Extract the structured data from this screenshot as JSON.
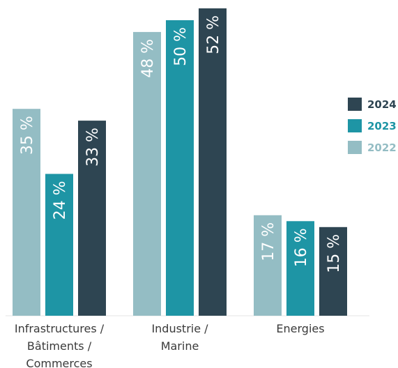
{
  "chart_data": {
    "type": "bar",
    "categories": [
      [
        "Infrastructures /",
        "Bâtiments /",
        "Commerces"
      ],
      [
        "Industrie /",
        "Marine"
      ],
      [
        "Energies"
      ]
    ],
    "series": [
      {
        "name": "2022",
        "color": "#94bdc4",
        "values": [
          35,
          48,
          17
        ],
        "labels": [
          "35 %",
          "48 %",
          "17 %"
        ]
      },
      {
        "name": "2023",
        "color": "#1e95a5",
        "values": [
          24,
          50,
          16
        ],
        "labels": [
          "24 %",
          "50 %",
          "16 %"
        ]
      },
      {
        "name": "2024",
        "color": "#2e4552",
        "values": [
          33,
          52,
          15
        ],
        "labels": [
          "33 %",
          "52 %",
          "15 %"
        ]
      }
    ],
    "legend_order": [
      "2024",
      "2023",
      "2022"
    ],
    "legend_position": "right",
    "ylim": [
      0,
      52
    ],
    "grid": false,
    "title": "",
    "xlabel": "",
    "ylabel": ""
  }
}
